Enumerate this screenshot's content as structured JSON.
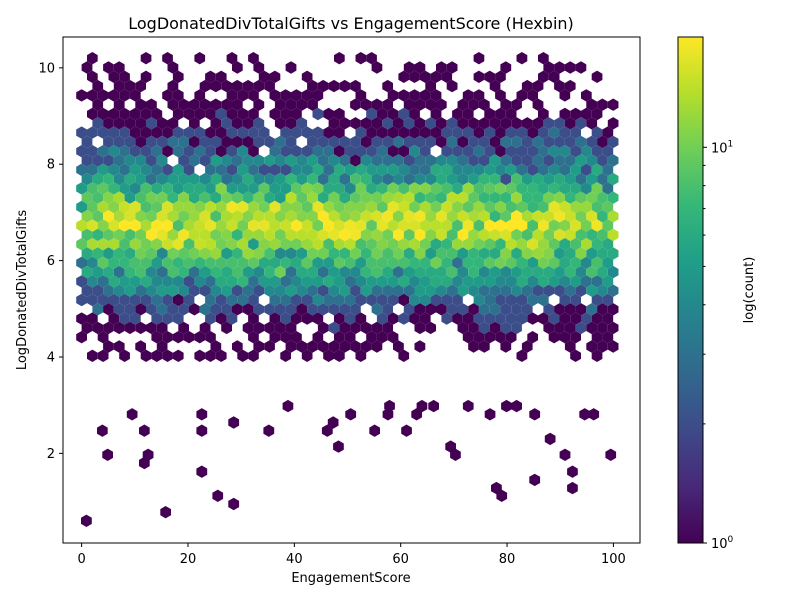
{
  "chart_data": {
    "type": "hexbin",
    "title": "LogDonatedDivTotalGifts vs EngagementScore (Hexbin)",
    "xlabel": "EngagementScore",
    "ylabel": "LogDonatedDivTotalGifts",
    "xlim": [
      -3.5,
      105
    ],
    "ylim": [
      0.14,
      10.64
    ],
    "x_ticks": [
      0,
      20,
      40,
      60,
      80,
      100
    ],
    "y_ticks": [
      2,
      4,
      6,
      8,
      10
    ],
    "grid": false,
    "colormap": "viridis",
    "colorbar": {
      "label": "log(count)",
      "scale": "log",
      "min": 1,
      "max": 19,
      "tick_labels": [
        "10^0",
        "10^1"
      ]
    },
    "density_profile": {
      "x_range": [
        0,
        100
      ],
      "y_range": [
        0.6,
        10.2
      ],
      "dense_band_y": [
        5.7,
        7.6
      ],
      "peak_y": 6.8,
      "max_count": 19
    },
    "outlier_points": [
      {
        "x": 0.9,
        "y": 0.6
      },
      {
        "x": 15.8,
        "y": 0.78
      },
      {
        "x": 28.6,
        "y": 0.95
      },
      {
        "x": 25.6,
        "y": 1.12
      },
      {
        "x": 22.6,
        "y": 1.62
      },
      {
        "x": 11.8,
        "y": 1.8
      },
      {
        "x": 12.5,
        "y": 1.97
      },
      {
        "x": 4.9,
        "y": 1.97
      },
      {
        "x": 70.3,
        "y": 1.97
      },
      {
        "x": 69.4,
        "y": 2.14
      },
      {
        "x": 48.3,
        "y": 2.14
      },
      {
        "x": 88.1,
        "y": 2.3
      },
      {
        "x": 61.1,
        "y": 2.47
      },
      {
        "x": 3.9,
        "y": 2.47
      },
      {
        "x": 11.8,
        "y": 2.47
      },
      {
        "x": 22.6,
        "y": 2.47
      },
      {
        "x": 35.2,
        "y": 2.47
      },
      {
        "x": 46.2,
        "y": 2.47
      },
      {
        "x": 55.1,
        "y": 2.47
      },
      {
        "x": 28.6,
        "y": 2.64
      },
      {
        "x": 47.3,
        "y": 2.64
      },
      {
        "x": 90.9,
        "y": 1.97
      },
      {
        "x": 99.5,
        "y": 1.97
      },
      {
        "x": 92.3,
        "y": 1.62
      },
      {
        "x": 85.2,
        "y": 1.45
      },
      {
        "x": 78.0,
        "y": 1.28
      },
      {
        "x": 92.3,
        "y": 1.28
      },
      {
        "x": 79.0,
        "y": 1.12
      },
      {
        "x": 76.8,
        "y": 2.81
      },
      {
        "x": 79.9,
        "y": 2.98
      },
      {
        "x": 81.8,
        "y": 2.98
      },
      {
        "x": 85.2,
        "y": 2.81
      },
      {
        "x": 94.6,
        "y": 2.81
      },
      {
        "x": 96.3,
        "y": 2.81
      },
      {
        "x": 9.5,
        "y": 2.81
      },
      {
        "x": 22.6,
        "y": 2.81
      },
      {
        "x": 50.6,
        "y": 2.81
      },
      {
        "x": 57.6,
        "y": 2.81
      },
      {
        "x": 63.0,
        "y": 2.81
      },
      {
        "x": 38.8,
        "y": 2.98
      },
      {
        "x": 57.9,
        "y": 2.98
      },
      {
        "x": 64.0,
        "y": 2.98
      },
      {
        "x": 66.2,
        "y": 2.98
      },
      {
        "x": 72.7,
        "y": 2.98
      }
    ]
  }
}
